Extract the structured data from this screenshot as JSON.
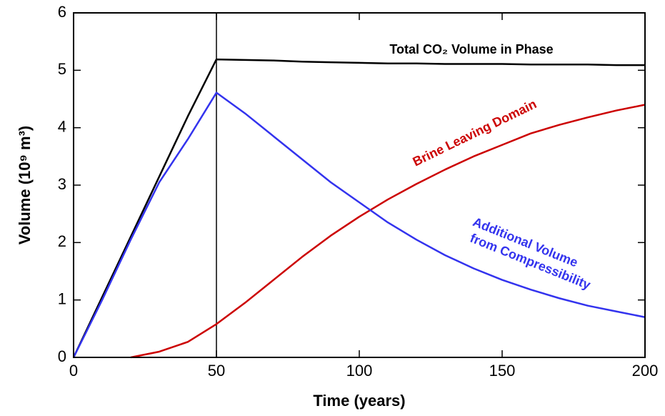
{
  "chart_data": {
    "type": "line",
    "x_label": "Time  (years)",
    "y_label": "Volume (10⁹ m³)",
    "x": [
      0,
      10,
      20,
      30,
      40,
      50,
      60,
      70,
      80,
      90,
      100,
      110,
      120,
      130,
      140,
      150,
      160,
      170,
      180,
      190,
      200
    ],
    "series": [
      {
        "name": "Total CO₂ Volume in Phase",
        "color": "#000000",
        "values": [
          0,
          1.05,
          2.1,
          3.15,
          4.2,
          5.19,
          5.18,
          5.17,
          5.15,
          5.14,
          5.13,
          5.12,
          5.12,
          5.11,
          5.11,
          5.11,
          5.1,
          5.1,
          5.1,
          5.09,
          5.09
        ]
      },
      {
        "name": "Brine Leaving Domain",
        "color": "#cc0000",
        "values": [
          null,
          null,
          0,
          0.1,
          0.27,
          0.58,
          0.95,
          1.35,
          1.75,
          2.12,
          2.45,
          2.75,
          3.02,
          3.27,
          3.5,
          3.7,
          3.9,
          4.05,
          4.18,
          4.3,
          4.4
        ]
      },
      {
        "name": "Additional Volume from Compressibility",
        "color": "#3333ee",
        "values": [
          0,
          1.0,
          2.05,
          3.05,
          3.8,
          4.61,
          4.25,
          3.85,
          3.45,
          3.05,
          2.7,
          2.35,
          2.05,
          1.78,
          1.55,
          1.35,
          1.18,
          1.03,
          0.9,
          0.8,
          0.7
        ]
      }
    ],
    "annotations": [
      {
        "text": "Total CO₂ Volume in Phase"
      },
      {
        "text": "Brine Leaving Domain"
      },
      {
        "text": "Additional Volume"
      },
      {
        "text": "from Compressibility"
      }
    ],
    "vertical_line_x": 50,
    "xlim": [
      0,
      200
    ],
    "ylim": [
      0,
      6
    ],
    "xticks": [
      0,
      50,
      100,
      150,
      200
    ],
    "yticks": [
      0,
      1,
      2,
      3,
      4,
      5,
      6
    ]
  }
}
